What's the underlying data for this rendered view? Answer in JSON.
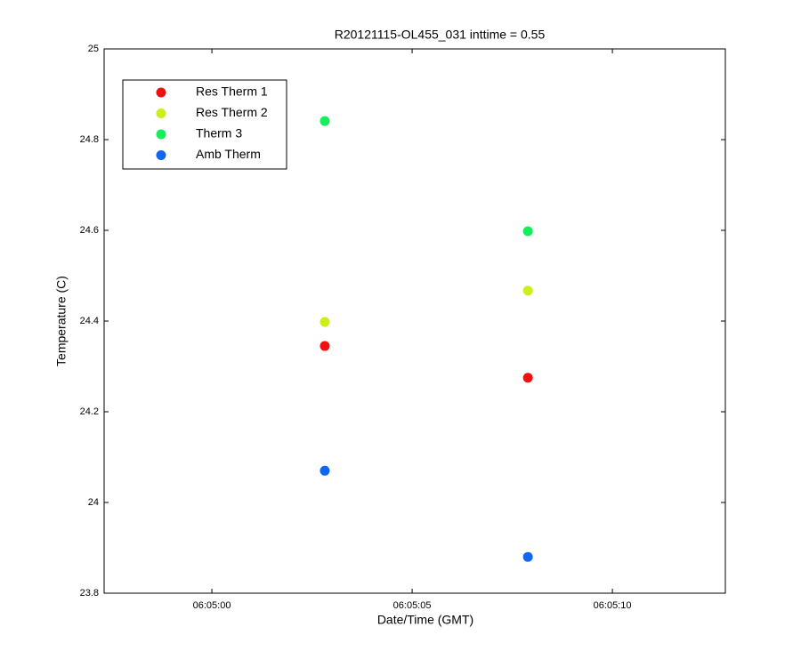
{
  "chart_data": {
    "type": "scatter",
    "title": "R20121115-OL455_031 inttime = 0.55",
    "x_label": "Date/Time (GMT)",
    "y_label": "Temperature (C)",
    "xlim": [
      -2.69,
      12.82
    ],
    "xticks": [
      {
        "value": 0,
        "label": "06:05:00"
      },
      {
        "value": 5,
        "label": "06:05:05"
      },
      {
        "value": 10,
        "label": "06:05:10"
      }
    ],
    "ylim": [
      23.8,
      25
    ],
    "yticks": [
      23.8,
      24,
      24.2,
      24.4,
      24.6,
      24.8,
      25
    ],
    "grid": false,
    "legend": "upper left",
    "series": [
      {
        "name": "Res Therm 1",
        "color": "#f01010",
        "x": [
          2.82,
          7.89
        ],
        "values": [
          24.345,
          24.275
        ]
      },
      {
        "name": "Res Therm 2",
        "color": "#ccee1a",
        "x": [
          2.82,
          7.89
        ],
        "values": [
          24.398,
          24.467
        ]
      },
      {
        "name": "Therm 3",
        "color": "#14ee5c",
        "x": [
          2.82,
          7.89
        ],
        "values": [
          24.841,
          24.598
        ]
      },
      {
        "name": "Amb Therm",
        "color": "#1066f0",
        "x": [
          2.82,
          7.89
        ],
        "values": [
          24.07,
          23.88
        ]
      }
    ]
  }
}
